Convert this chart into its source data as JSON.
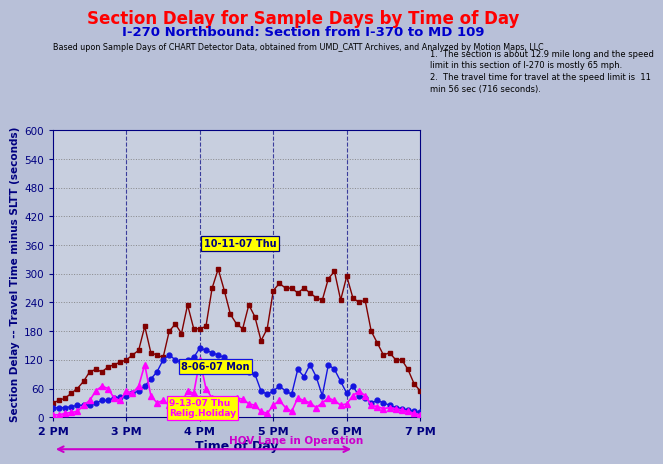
{
  "title": "Section Delay for Sample Days by Time of Day",
  "subtitle": "I-270 Northbound: Section from I-370 to MD 109",
  "source_text": "Based upon Sample Days of CHART Detector Data, obtained from UMD_CATT Archives, and Analyzed by Motion Maps, LLC",
  "note_text": "1.  The section is about 12.9 mile long and the speed\nlimit in this section of I-270 is mostly 65 mph.\n2.  The travel time for travel at the speed limit is  11\nmin 56 sec (716 seconds).",
  "xlabel": "Time of Day",
  "ylabel": "Section Delay -- Travel Time minus SLTT (seconds)",
  "hov_label": "HOV Lane in Operation",
  "background_color": "#b8c0d8",
  "plot_bg_color": "#c8cfdf",
  "ylim": [
    0,
    600
  ],
  "yticks": [
    0,
    60,
    120,
    180,
    240,
    300,
    360,
    420,
    480,
    540,
    600
  ],
  "xmin": 14.0,
  "xmax": 19.0,
  "xtick_positions": [
    14,
    15,
    16,
    17,
    18,
    19
  ],
  "xtick_labels": [
    "2 PM",
    "3 PM",
    "4 PM",
    "5 PM",
    "6 PM",
    "7 PM"
  ],
  "label_aug": "8-06-07 Mon",
  "label_sep": "9-13-07 Thu\nRelig.Holiday",
  "label_oct": "10-11-07 Thu",
  "aug_color": "#1414e0",
  "sep_color": "#ff00ff",
  "oct_color": "#800000",
  "title_color": "#ff0000",
  "subtitle_color": "#0000cc",
  "time_pts": [
    14.0,
    14.083,
    14.167,
    14.25,
    14.333,
    14.417,
    14.5,
    14.583,
    14.667,
    14.75,
    14.833,
    14.917,
    15.0,
    15.083,
    15.167,
    15.25,
    15.333,
    15.417,
    15.5,
    15.583,
    15.667,
    15.75,
    15.833,
    15.917,
    16.0,
    16.083,
    16.167,
    16.25,
    16.333,
    16.417,
    16.5,
    16.583,
    16.667,
    16.75,
    16.833,
    16.917,
    17.0,
    17.083,
    17.167,
    17.25,
    17.333,
    17.417,
    17.5,
    17.583,
    17.667,
    17.75,
    17.833,
    17.917,
    18.0,
    18.083,
    18.167,
    18.25,
    18.333,
    18.417,
    18.5,
    18.583,
    18.667,
    18.75,
    18.833,
    18.917,
    19.0
  ],
  "data_oct": [
    30,
    35,
    40,
    50,
    60,
    75,
    95,
    100,
    95,
    105,
    110,
    115,
    120,
    130,
    140,
    190,
    135,
    130,
    125,
    180,
    195,
    175,
    235,
    185,
    185,
    190,
    270,
    310,
    265,
    215,
    195,
    185,
    235,
    210,
    160,
    185,
    265,
    280,
    270,
    270,
    260,
    270,
    260,
    250,
    245,
    290,
    305,
    245,
    295,
    250,
    240,
    245,
    180,
    155,
    130,
    135,
    120,
    120,
    100,
    70,
    55
  ],
  "data_aug": [
    20,
    20,
    20,
    22,
    25,
    25,
    25,
    30,
    35,
    35,
    40,
    42,
    45,
    50,
    55,
    65,
    80,
    95,
    120,
    130,
    120,
    115,
    120,
    125,
    145,
    140,
    135,
    130,
    125,
    115,
    105,
    100,
    95,
    90,
    55,
    48,
    55,
    65,
    55,
    48,
    100,
    85,
    110,
    85,
    45,
    110,
    100,
    75,
    50,
    65,
    45,
    40,
    30,
    35,
    30,
    25,
    20,
    18,
    15,
    12,
    10
  ],
  "data_sep": [
    5,
    5,
    8,
    10,
    12,
    25,
    35,
    55,
    65,
    60,
    40,
    35,
    55,
    50,
    65,
    110,
    45,
    30,
    35,
    25,
    20,
    30,
    55,
    50,
    120,
    60,
    40,
    35,
    30,
    20,
    40,
    38,
    28,
    25,
    12,
    8,
    25,
    35,
    20,
    12,
    40,
    35,
    30,
    20,
    30,
    40,
    35,
    25,
    28,
    45,
    55,
    45,
    25,
    22,
    18,
    20,
    18,
    15,
    12,
    8,
    5
  ]
}
